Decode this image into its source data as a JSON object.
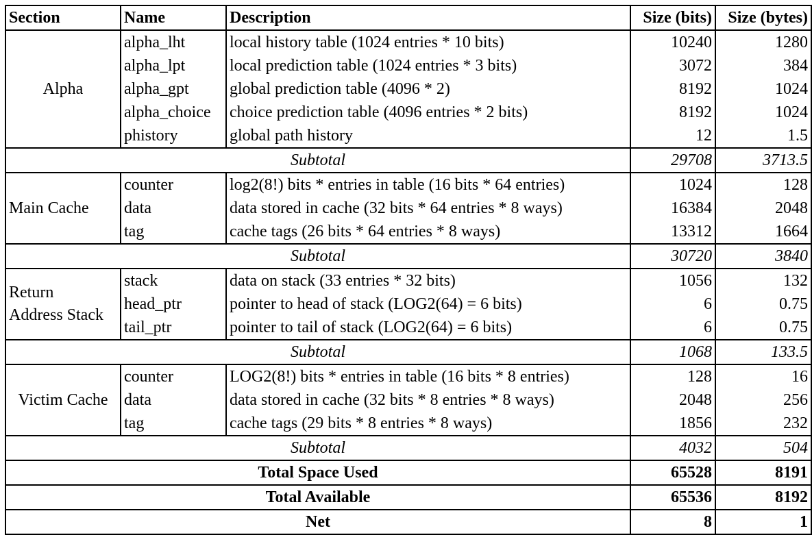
{
  "headers": [
    "Section",
    "Name",
    "Description",
    "Size (bits)",
    "Size (bytes)"
  ],
  "sections": [
    {
      "name_lines": [
        "Alpha"
      ],
      "rows": [
        {
          "name": "alpha_lht",
          "desc": "local history table (1024 entries * 10 bits)",
          "bits": "10240",
          "bytes": "1280"
        },
        {
          "name": "alpha_lpt",
          "desc": "local prediction table (1024 entries * 3 bits)",
          "bits": "3072",
          "bytes": "384"
        },
        {
          "name": "alpha_gpt",
          "desc": "global prediction table (4096 * 2)",
          "bits": "8192",
          "bytes": "1024"
        },
        {
          "name": "alpha_choice",
          "desc": "choice prediction table (4096 entries * 2 bits)",
          "bits": "8192",
          "bytes": "1024"
        },
        {
          "name": "phistory",
          "desc": "global path history",
          "bits": "12",
          "bytes": "1.5"
        }
      ],
      "subtotal": {
        "label": "Subtotal",
        "bits": "29708",
        "bytes": "3713.5"
      }
    },
    {
      "name_lines": [
        "Main Cache"
      ],
      "rows": [
        {
          "name": "counter",
          "desc": "log2(8!) bits * entries in table (16 bits * 64 entries)",
          "bits": "1024",
          "bytes": "128"
        },
        {
          "name": "data",
          "desc": "data stored in cache (32 bits * 64 entries * 8 ways)",
          "bits": "16384",
          "bytes": "2048"
        },
        {
          "name": "tag",
          "desc": "cache tags (26 bits * 64 entries * 8 ways)",
          "bits": "13312",
          "bytes": "1664"
        }
      ],
      "subtotal": {
        "label": "Subtotal",
        "bits": "30720",
        "bytes": "3840"
      }
    },
    {
      "name_lines": [
        "Return",
        "Address Stack"
      ],
      "rows": [
        {
          "name": "stack",
          "desc": "data on stack (33 entries * 32 bits)",
          "bits": "1056",
          "bytes": "132"
        },
        {
          "name": "head_ptr",
          "desc": "pointer to head of stack (LOG2(64) = 6 bits)",
          "bits": "6",
          "bytes": "0.75"
        },
        {
          "name": "tail_ptr",
          "desc": "pointer to tail of stack (LOG2(64) = 6 bits)",
          "bits": "6",
          "bytes": "0.75"
        }
      ],
      "subtotal": {
        "label": "Subtotal",
        "bits": "1068",
        "bytes": "133.5"
      }
    },
    {
      "name_lines": [
        "Victim Cache"
      ],
      "rows": [
        {
          "name": "counter",
          "desc": "LOG2(8!) bits * entries in table (16 bits * 8 entries)",
          "bits": "128",
          "bytes": "16"
        },
        {
          "name": "data",
          "desc": "data stored in cache (32 bits * 8 entries * 8 ways)",
          "bits": "2048",
          "bytes": "256"
        },
        {
          "name": "tag",
          "desc": "cache tags (29 bits * 8 entries * 8 ways)",
          "bits": "1856",
          "bytes": "232"
        }
      ],
      "subtotal": {
        "label": "Subtotal",
        "bits": "4032",
        "bytes": "504"
      }
    }
  ],
  "totals": [
    {
      "label": "Total Space Used",
      "bits": "65528",
      "bytes": "8191"
    },
    {
      "label": "Total Available",
      "bits": "65536",
      "bytes": "8192"
    },
    {
      "label": "Net",
      "bits": "8",
      "bytes": "1"
    }
  ]
}
